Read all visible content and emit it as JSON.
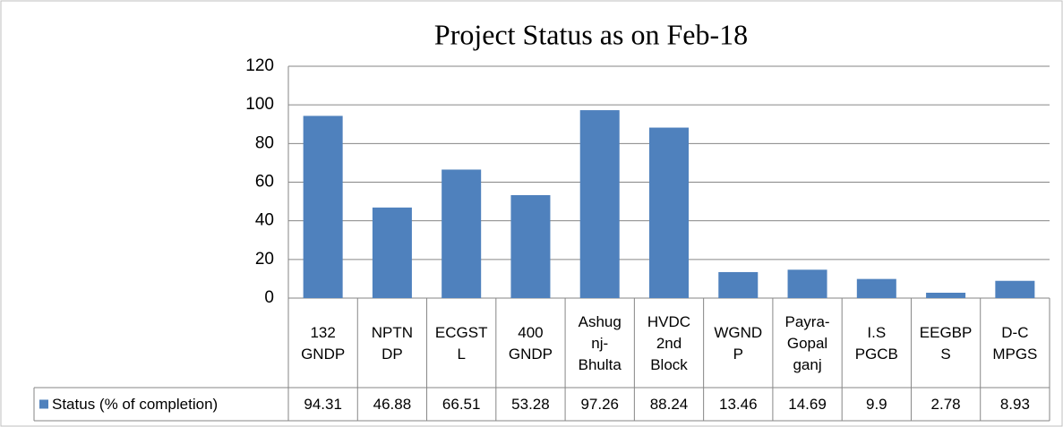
{
  "chart_data": {
    "type": "bar",
    "title": "Project  Status as on  Feb-18",
    "categories": [
      "132\nGNDP",
      "NPTN\nDP",
      "ECGST\nL",
      "400\nGNDP",
      "Ashug\nnj-\nBhulta",
      "HVDC\n2nd\nBlock",
      "WGND\nP",
      "Payra-\nGopal\nganj",
      "I.S\nPGCB",
      "EEGBP\nS",
      "D-C\nMPGS"
    ],
    "series": [
      {
        "name": "Status (% of completion)",
        "color": "#4f81bd",
        "values": [
          94.31,
          46.88,
          66.51,
          53.28,
          97.26,
          88.24,
          13.46,
          14.69,
          9.9,
          2.78,
          8.93
        ]
      }
    ],
    "ylim": [
      0,
      120
    ],
    "yticks": [
      0,
      20,
      40,
      60,
      80,
      100,
      120
    ],
    "grid": true
  }
}
